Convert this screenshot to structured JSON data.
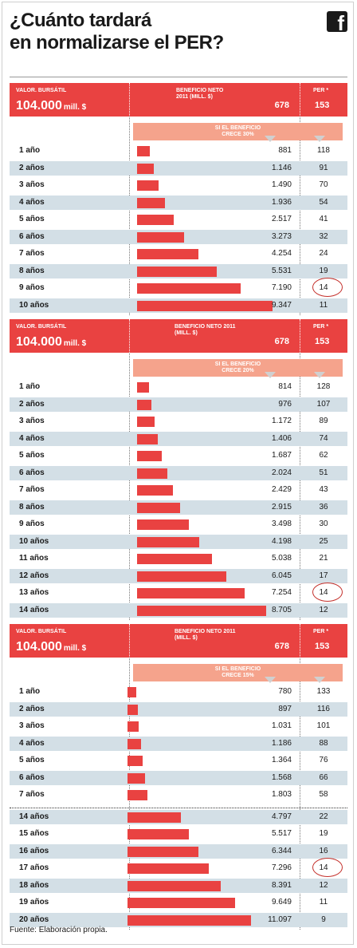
{
  "title_lines": [
    "¿Cuánto tardará",
    "en normalizarse el PER?"
  ],
  "source": "Fuente: Elaboración propia.",
  "icons": {
    "brand": "facebook-icon",
    "brand_glyph": "f"
  },
  "colors": {
    "accent": "#e94241",
    "banner": "#f5a38c",
    "row_alt": "#d3dfe6",
    "circle": "#c4302b"
  },
  "chart_data": [
    {
      "type": "bar",
      "header": {
        "market_cap_label": "VALOR. BURSÁTIL",
        "market_cap_value": "104.000",
        "market_cap_unit": "mill. $",
        "benefit_label_lines": [
          "BENEFICIO NETO",
          "2011 (MILL. $)"
        ],
        "benefit_value": "678",
        "per_label": "PER *",
        "per_value": "153"
      },
      "banner_lines": [
        "SI EL BENEFICIO",
        "CRECE 30%"
      ],
      "categories": [
        "1 año",
        "2 años",
        "3 años",
        "4 años",
        "5 años",
        "6 años",
        "7 años",
        "8 años",
        "9 años",
        "10 años"
      ],
      "benefit": [
        881,
        1146,
        1490,
        1936,
        2517,
        3273,
        4254,
        5531,
        7190,
        9347
      ],
      "benefit_labels": [
        "881",
        "1.146",
        "1.490",
        "1.936",
        "2.517",
        "3.273",
        "4.254",
        "5.531",
        "7.190",
        "9.347"
      ],
      "per": [
        "118",
        "91",
        "70",
        "54",
        "41",
        "32",
        "24",
        "19",
        "14",
        "11"
      ],
      "highlight_index": 8,
      "xlim": [
        0,
        11097
      ]
    },
    {
      "type": "bar",
      "header": {
        "market_cap_label": "VALOR. BURSÁTIL",
        "market_cap_value": "104.000",
        "market_cap_unit": "mill. $",
        "benefit_label_lines": [
          "BENEFICIO NETO 2011",
          "(MILL. $)"
        ],
        "benefit_value": "678",
        "per_label": "PER *",
        "per_value": "153"
      },
      "banner_lines": [
        "SI EL BENEFICIO",
        "CRECE 20%"
      ],
      "categories": [
        "1 año",
        "2 años",
        "3 años",
        "4 años",
        "5 años",
        "6 años",
        "7 años",
        "8 años",
        "9 años",
        "10 años",
        "11 años",
        "12 años",
        "13 años",
        "14 años"
      ],
      "benefit": [
        814,
        976,
        1172,
        1406,
        1687,
        2024,
        2429,
        2915,
        3498,
        4198,
        5038,
        6045,
        7254,
        8705
      ],
      "benefit_labels": [
        "814",
        "976",
        "1.172",
        "1.406",
        "1.687",
        "2.024",
        "2.429",
        "2.915",
        "3.498",
        "4.198",
        "5.038",
        "6.045",
        "7.254",
        "8.705"
      ],
      "per": [
        "128",
        "107",
        "89",
        "74",
        "62",
        "51",
        "43",
        "36",
        "30",
        "25",
        "21",
        "17",
        "14",
        "12"
      ],
      "highlight_index": 12,
      "xlim": [
        0,
        11097
      ]
    },
    {
      "type": "bar",
      "header": {
        "market_cap_label": "VALOR. BURSÁTIL",
        "market_cap_value": "104.000",
        "market_cap_unit": "mill. $",
        "benefit_label_lines": [
          "BENEFICIO NETO 2011",
          "(MILL. $)"
        ],
        "benefit_value": "678",
        "per_label": "PER *",
        "per_value": "153"
      },
      "banner_lines": [
        "SI EL BENEFICIO",
        "CRECE 15%"
      ],
      "categories": [
        "1 año",
        "2 años",
        "3 años",
        "4 años",
        "5 años",
        "6 años",
        "7 años",
        "14 años",
        "15 años",
        "16 años",
        "17 años",
        "18 años",
        "19 años",
        "20 años"
      ],
      "benefit": [
        780,
        897,
        1031,
        1186,
        1364,
        1568,
        1803,
        4797,
        5517,
        6344,
        7296,
        8391,
        9649,
        11097
      ],
      "benefit_labels": [
        "780",
        "897",
        "1.031",
        "1.186",
        "1.364",
        "1.568",
        "1.803",
        "4.797",
        "5.517",
        "6.344",
        "7.296",
        "8.391",
        "9.649",
        "11.097"
      ],
      "per": [
        "133",
        "116",
        "101",
        "88",
        "76",
        "66",
        "58",
        "22",
        "19",
        "16",
        "14",
        "12",
        "11",
        "9"
      ],
      "highlight_index": 10,
      "break_after_index": 6,
      "xlim": [
        0,
        11097
      ]
    }
  ]
}
